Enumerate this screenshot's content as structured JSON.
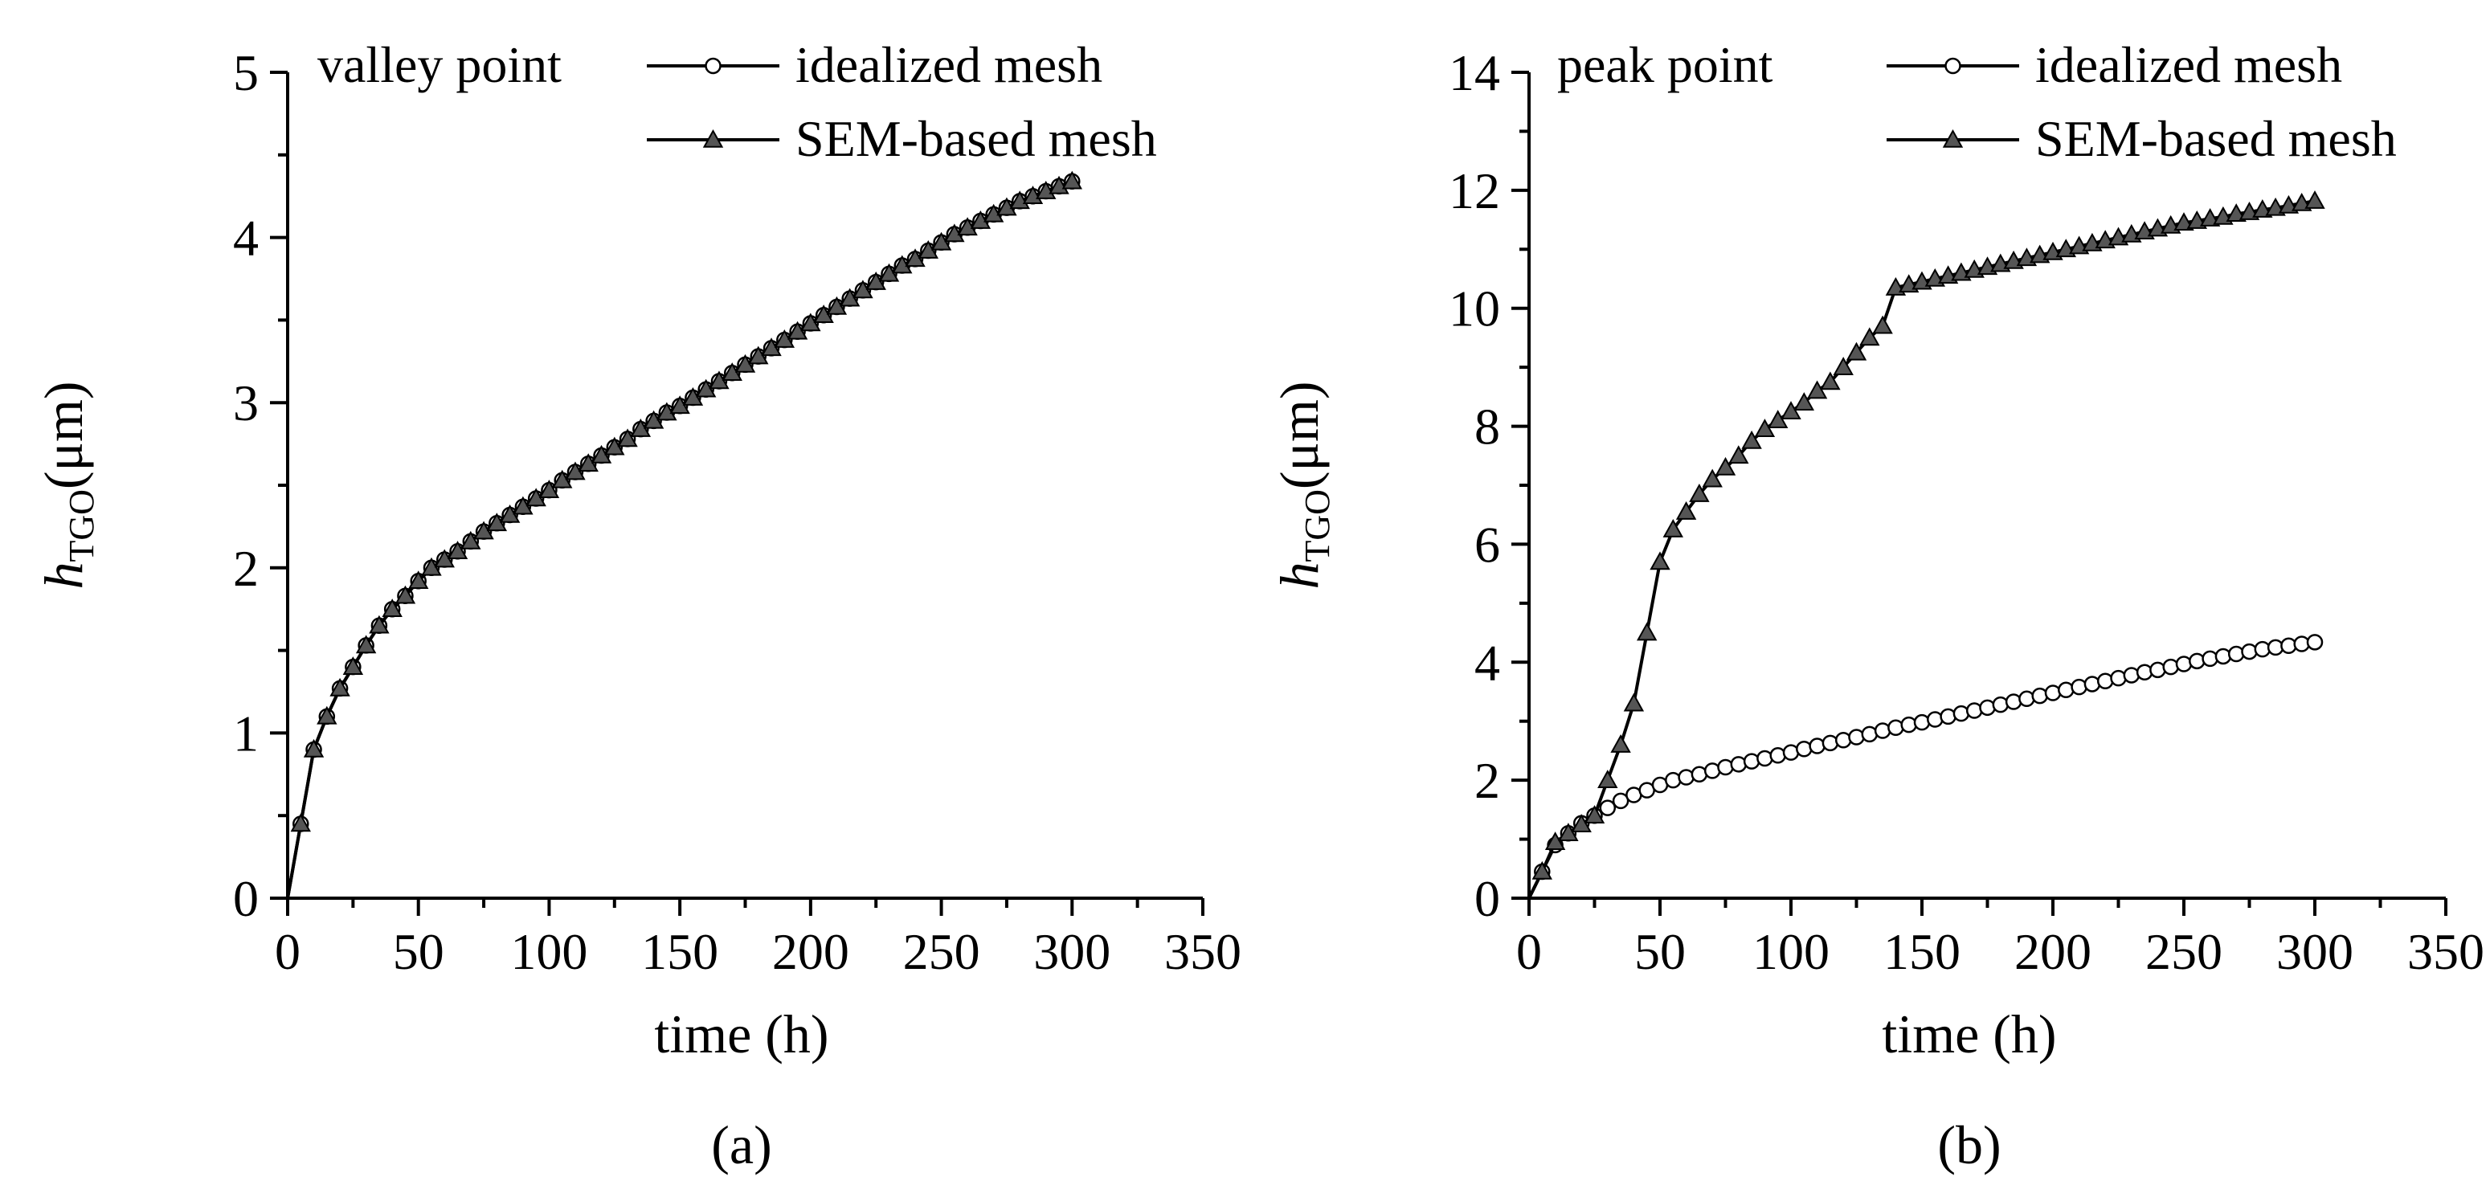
{
  "chart_data": [
    {
      "id": "a",
      "type": "line",
      "panel_label": "(a)",
      "annotation": "valley point",
      "xlabel": "time (h)",
      "ylabel_main": "h",
      "ylabel_sub": "TGO",
      "ylabel_unit": "(μm)",
      "xlim": [
        0,
        350
      ],
      "ylim": [
        0,
        5
      ],
      "xticks": [
        0,
        50,
        100,
        150,
        200,
        250,
        300,
        350
      ],
      "xtick_labels": [
        "0",
        "50",
        "100",
        "150",
        "200",
        "250",
        "300",
        "350"
      ],
      "yticks": [
        0,
        1,
        2,
        3,
        4,
        5
      ],
      "ytick_labels": [
        "0",
        "1",
        "2",
        "3",
        "4",
        "5"
      ],
      "legend_position": "top-right",
      "series": [
        {
          "name": "idealized mesh",
          "marker": "circle",
          "x": [
            0,
            5,
            10,
            15,
            20,
            25,
            30,
            35,
            40,
            45,
            50,
            55,
            60,
            65,
            70,
            75,
            80,
            85,
            90,
            95,
            100,
            105,
            110,
            115,
            120,
            125,
            130,
            135,
            140,
            145,
            150,
            155,
            160,
            165,
            170,
            175,
            180,
            185,
            190,
            195,
            200,
            205,
            210,
            215,
            220,
            225,
            230,
            235,
            240,
            245,
            250,
            255,
            260,
            265,
            270,
            275,
            280,
            285,
            290,
            295,
            300
          ],
          "y": [
            0,
            0.45,
            0.9,
            1.1,
            1.27,
            1.4,
            1.53,
            1.65,
            1.75,
            1.83,
            1.92,
            2.0,
            2.05,
            2.1,
            2.16,
            2.22,
            2.27,
            2.32,
            2.37,
            2.42,
            2.47,
            2.53,
            2.58,
            2.63,
            2.68,
            2.73,
            2.78,
            2.84,
            2.89,
            2.94,
            2.98,
            3.03,
            3.08,
            3.13,
            3.18,
            3.23,
            3.28,
            3.33,
            3.38,
            3.43,
            3.48,
            3.53,
            3.58,
            3.63,
            3.68,
            3.73,
            3.78,
            3.83,
            3.87,
            3.92,
            3.97,
            4.02,
            4.06,
            4.1,
            4.14,
            4.18,
            4.22,
            4.25,
            4.28,
            4.31,
            4.34
          ]
        },
        {
          "name": "SEM-based mesh",
          "marker": "triangle",
          "x": [
            0,
            5,
            10,
            15,
            20,
            25,
            30,
            35,
            40,
            45,
            50,
            55,
            60,
            65,
            70,
            75,
            80,
            85,
            90,
            95,
            100,
            105,
            110,
            115,
            120,
            125,
            130,
            135,
            140,
            145,
            150,
            155,
            160,
            165,
            170,
            175,
            180,
            185,
            190,
            195,
            200,
            205,
            210,
            215,
            220,
            225,
            230,
            235,
            240,
            245,
            250,
            255,
            260,
            265,
            270,
            275,
            280,
            285,
            290,
            295,
            300
          ],
          "y": [
            0,
            0.45,
            0.9,
            1.1,
            1.27,
            1.4,
            1.53,
            1.65,
            1.75,
            1.83,
            1.92,
            2.0,
            2.05,
            2.1,
            2.16,
            2.22,
            2.27,
            2.32,
            2.37,
            2.42,
            2.47,
            2.53,
            2.58,
            2.63,
            2.68,
            2.73,
            2.78,
            2.84,
            2.89,
            2.94,
            2.98,
            3.03,
            3.08,
            3.13,
            3.18,
            3.23,
            3.28,
            3.33,
            3.38,
            3.43,
            3.48,
            3.53,
            3.58,
            3.63,
            3.68,
            3.73,
            3.78,
            3.83,
            3.87,
            3.92,
            3.97,
            4.02,
            4.06,
            4.1,
            4.14,
            4.18,
            4.22,
            4.25,
            4.28,
            4.31,
            4.34
          ]
        }
      ]
    },
    {
      "id": "b",
      "type": "line",
      "panel_label": "(b)",
      "annotation": "peak point",
      "xlabel": "time (h)",
      "ylabel_main": "h",
      "ylabel_sub": "TGO",
      "ylabel_unit": "(μm)",
      "xlim": [
        0,
        350
      ],
      "ylim": [
        0,
        14
      ],
      "xticks": [
        0,
        50,
        100,
        150,
        200,
        250,
        300,
        350
      ],
      "xtick_labels": [
        "0",
        "50",
        "100",
        "150",
        "200",
        "250",
        "300",
        "350"
      ],
      "yticks": [
        0,
        2,
        4,
        6,
        8,
        10,
        12,
        14
      ],
      "ytick_labels": [
        "0",
        "2",
        "4",
        "6",
        "8",
        "10",
        "12",
        "14"
      ],
      "legend_position": "top-right",
      "series": [
        {
          "name": "idealized mesh",
          "marker": "circle",
          "x": [
            0,
            5,
            10,
            15,
            20,
            25,
            30,
            35,
            40,
            45,
            50,
            55,
            60,
            65,
            70,
            75,
            80,
            85,
            90,
            95,
            100,
            105,
            110,
            115,
            120,
            125,
            130,
            135,
            140,
            145,
            150,
            155,
            160,
            165,
            170,
            175,
            180,
            185,
            190,
            195,
            200,
            205,
            210,
            215,
            220,
            225,
            230,
            235,
            240,
            245,
            250,
            255,
            260,
            265,
            270,
            275,
            280,
            285,
            290,
            295,
            300
          ],
          "y": [
            0,
            0.45,
            0.9,
            1.1,
            1.27,
            1.4,
            1.53,
            1.65,
            1.75,
            1.83,
            1.92,
            2.0,
            2.05,
            2.1,
            2.16,
            2.22,
            2.27,
            2.32,
            2.37,
            2.42,
            2.47,
            2.53,
            2.58,
            2.63,
            2.68,
            2.73,
            2.78,
            2.84,
            2.89,
            2.94,
            2.98,
            3.03,
            3.08,
            3.13,
            3.18,
            3.23,
            3.28,
            3.33,
            3.38,
            3.43,
            3.48,
            3.53,
            3.58,
            3.63,
            3.68,
            3.73,
            3.78,
            3.83,
            3.87,
            3.92,
            3.97,
            4.02,
            4.06,
            4.1,
            4.14,
            4.18,
            4.22,
            4.25,
            4.28,
            4.31,
            4.34
          ]
        },
        {
          "name": "SEM-based mesh",
          "marker": "triangle",
          "x": [
            0,
            5,
            10,
            15,
            20,
            25,
            30,
            35,
            40,
            45,
            50,
            55,
            60,
            65,
            70,
            75,
            80,
            85,
            90,
            95,
            100,
            105,
            110,
            115,
            120,
            125,
            130,
            135,
            140,
            145,
            150,
            155,
            160,
            165,
            170,
            175,
            180,
            185,
            190,
            195,
            200,
            205,
            210,
            215,
            220,
            225,
            230,
            235,
            240,
            245,
            250,
            255,
            260,
            265,
            270,
            275,
            280,
            285,
            290,
            295,
            300
          ],
          "y": [
            0,
            0.45,
            0.95,
            1.1,
            1.25,
            1.4,
            2.0,
            2.6,
            3.3,
            4.5,
            5.7,
            6.25,
            6.55,
            6.85,
            7.1,
            7.3,
            7.5,
            7.75,
            7.95,
            8.1,
            8.25,
            8.4,
            8.6,
            8.75,
            9.0,
            9.25,
            9.5,
            9.7,
            10.35,
            10.4,
            10.45,
            10.5,
            10.55,
            10.6,
            10.65,
            10.7,
            10.75,
            10.8,
            10.85,
            10.9,
            10.95,
            11.0,
            11.05,
            11.1,
            11.15,
            11.2,
            11.25,
            11.3,
            11.35,
            11.4,
            11.45,
            11.48,
            11.52,
            11.55,
            11.6,
            11.63,
            11.67,
            11.7,
            11.74,
            11.78,
            11.82
          ]
        }
      ]
    }
  ]
}
